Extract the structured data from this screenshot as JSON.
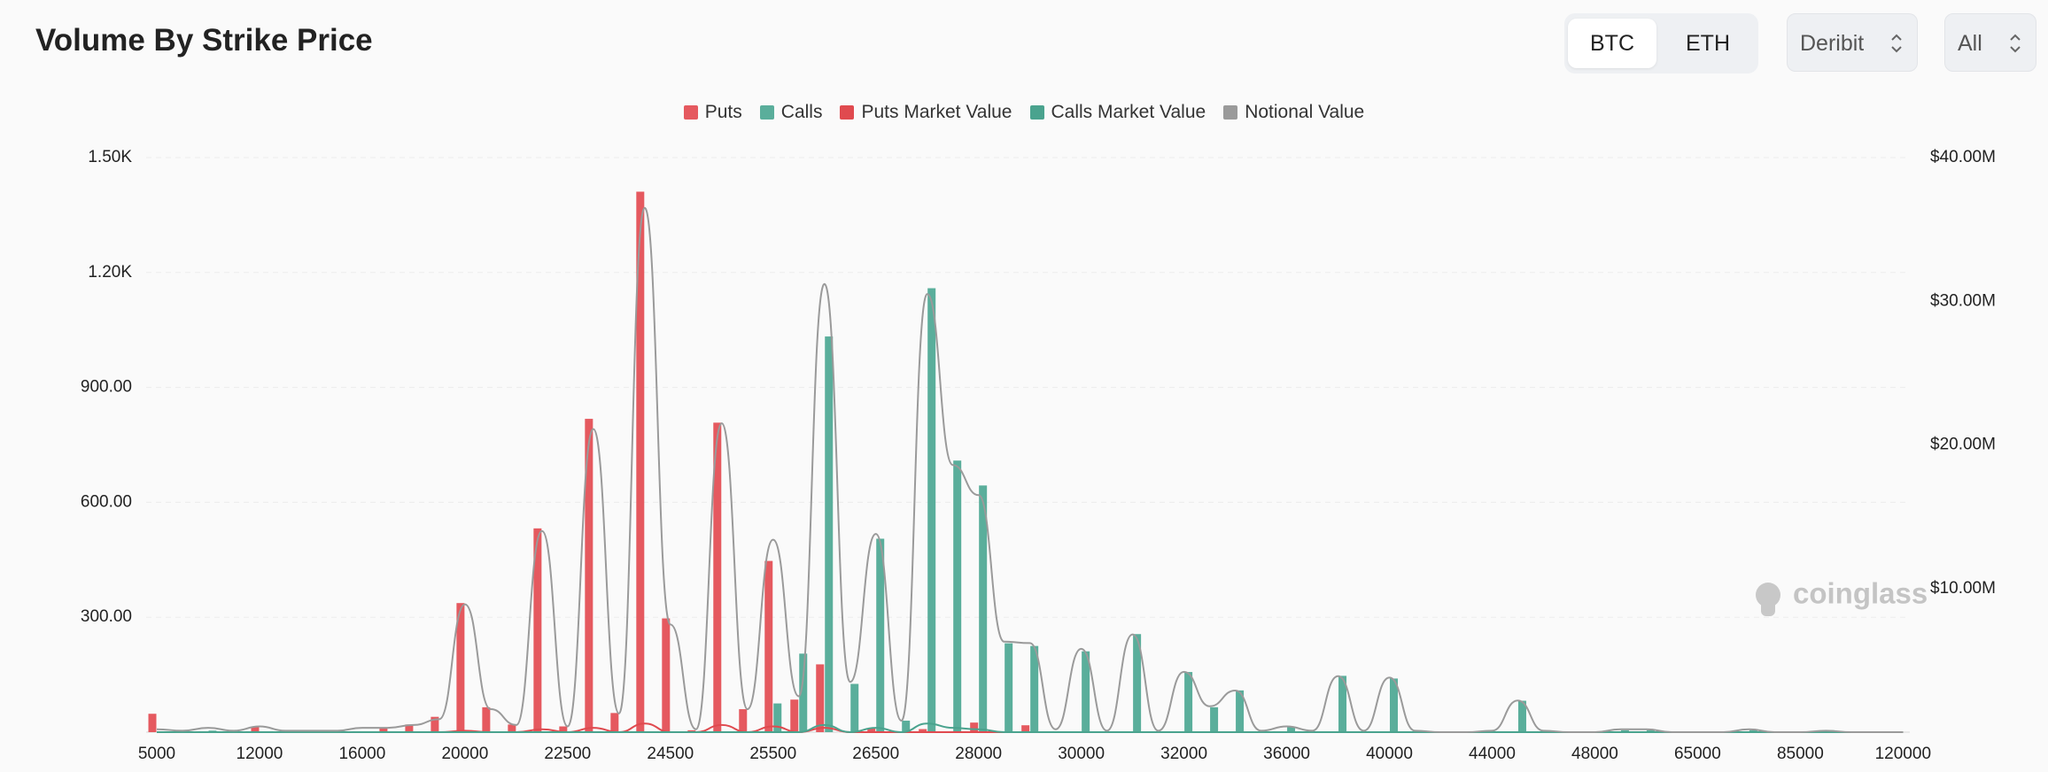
{
  "chart_data": {
    "type": "bar",
    "title": "Volume By Strike Price",
    "categories": [
      "5000",
      null,
      null,
      null,
      "12000",
      null,
      null,
      null,
      "16000",
      null,
      null,
      null,
      "20000",
      null,
      null,
      null,
      "22500",
      null,
      null,
      null,
      "24500",
      null,
      null,
      null,
      "25500",
      null,
      null,
      null,
      "26500",
      null,
      null,
      null,
      "28000",
      null,
      null,
      null,
      "30000",
      null,
      null,
      null,
      "32000",
      null,
      null,
      null,
      "36000",
      null,
      null,
      null,
      "40000",
      null,
      null,
      null,
      "44000",
      null,
      null,
      null,
      "48000",
      null,
      null,
      null,
      "65000",
      null,
      null,
      null,
      "85000",
      null,
      null,
      null,
      "120000"
    ],
    "series": [
      {
        "name": "Puts",
        "type": "bar",
        "color": "#e5595f",
        "values": [
          48,
          0,
          0,
          0,
          15,
          0,
          0,
          0,
          0,
          10,
          20,
          40,
          337,
          65,
          20,
          532,
          15,
          818,
          50,
          1411,
          297,
          5,
          808,
          60,
          447,
          85,
          177,
          0,
          10,
          0,
          8,
          0,
          25,
          0,
          18,
          0,
          0,
          0,
          0,
          0,
          0,
          0,
          0,
          0,
          0,
          0,
          0,
          0,
          0,
          0,
          0,
          0,
          0,
          0,
          0,
          0,
          0,
          0,
          0,
          0,
          0,
          0,
          0,
          0,
          0,
          0,
          0,
          0,
          0
        ]
      },
      {
        "name": "Calls",
        "type": "bar",
        "color": "#5aae9b",
        "values": [
          0,
          0,
          4,
          0,
          0,
          0,
          0,
          3,
          0,
          0,
          0,
          0,
          0,
          0,
          0,
          0,
          0,
          0,
          0,
          0,
          0,
          0,
          0,
          0,
          75,
          205,
          1033,
          126,
          505,
          30,
          1159,
          709,
          644,
          232,
          225,
          0,
          211,
          0,
          256,
          0,
          157,
          65,
          109,
          0,
          15,
          0,
          147,
          0,
          140,
          0,
          0,
          0,
          0,
          82,
          0,
          0,
          0,
          5,
          5,
          0,
          0,
          0,
          5,
          0,
          0,
          5,
          0,
          0,
          0
        ]
      },
      {
        "name": "Puts Market Value",
        "type": "line",
        "axis": "y2",
        "color": "#e04a4f",
        "values": [
          0,
          0,
          0,
          0,
          0,
          0,
          0,
          0,
          0,
          0,
          0,
          0,
          0.1,
          0,
          0,
          0.2,
          0,
          0.3,
          0,
          0.6,
          0,
          0,
          0.5,
          0,
          0.4,
          0,
          0.3,
          0,
          0,
          0,
          0,
          0,
          0,
          0,
          0,
          0,
          0,
          0,
          0,
          0,
          0,
          0,
          0,
          0,
          0,
          0,
          0,
          0,
          0,
          0,
          0,
          0,
          0,
          0,
          0,
          0,
          0,
          0,
          0,
          0,
          0,
          0,
          0,
          0,
          0,
          0,
          0,
          0,
          0
        ]
      },
      {
        "name": "Calls Market Value",
        "type": "line",
        "axis": "y2",
        "color": "#4aa38e",
        "values": [
          0,
          0,
          0,
          0,
          0,
          0,
          0,
          0,
          0,
          0,
          0,
          0,
          0,
          0,
          0,
          0,
          0,
          0,
          0,
          0,
          0,
          0,
          0,
          0,
          0,
          0,
          0.5,
          0,
          0.3,
          0,
          0.6,
          0.3,
          0.2,
          0,
          0,
          0,
          0,
          0,
          0,
          0,
          0,
          0,
          0,
          0,
          0,
          0,
          0,
          0,
          0,
          0,
          0,
          0,
          0,
          0,
          0,
          0,
          0,
          0,
          0,
          0,
          0,
          0,
          0,
          0,
          0,
          0,
          0,
          0,
          0
        ]
      },
      {
        "name": "Notional Value",
        "type": "line",
        "axis": "y2",
        "color": "#9a9a9a",
        "values": [
          0.2,
          0.1,
          0.3,
          0.1,
          0.4,
          0.1,
          0.1,
          0.1,
          0.3,
          0.3,
          0.5,
          0.9,
          8.9,
          1.6,
          0.5,
          14.0,
          0.4,
          21.1,
          1.3,
          36.5,
          7.5,
          0.2,
          21.5,
          1.6,
          13.4,
          2.5,
          31.2,
          3.5,
          13.8,
          0.8,
          30.5,
          18.6,
          16.5,
          6.3,
          6.2,
          0.2,
          5.8,
          0.1,
          6.8,
          0.1,
          4.2,
          1.8,
          2.9,
          0.1,
          0.4,
          0.1,
          3.9,
          0.1,
          3.8,
          0.1,
          0,
          0,
          0.1,
          2.2,
          0.1,
          0,
          0,
          0.2,
          0.2,
          0,
          0,
          0,
          0.2,
          0,
          0,
          0.1,
          0,
          0,
          0
        ]
      }
    ],
    "ylim": [
      0,
      1500
    ],
    "yticks": [
      {
        "value": 300,
        "label": "300.00"
      },
      {
        "value": 600,
        "label": "600.00"
      },
      {
        "value": 900,
        "label": "900.00"
      },
      {
        "value": 1200,
        "label": "1.20K"
      },
      {
        "value": 1500,
        "label": "1.50K"
      }
    ],
    "y2lim": [
      0,
      40
    ],
    "y2ticks": [
      {
        "value": 10,
        "label": "$10.00M"
      },
      {
        "value": 20,
        "label": "$20.00M"
      },
      {
        "value": 30,
        "label": "$30.00M"
      },
      {
        "value": 40,
        "label": "$40.00M"
      }
    ],
    "grid": true,
    "legend": "top"
  },
  "controls": {
    "coins": [
      "BTC",
      "ETH"
    ],
    "exchange": "Deribit",
    "period": "All"
  },
  "watermark": "coinglass"
}
